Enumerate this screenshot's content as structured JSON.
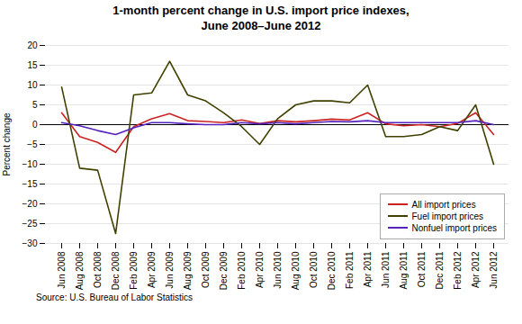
{
  "chart_data": {
    "type": "line",
    "title": "1-month percent change in U.S. import price indexes,\nJune 2008–June 2012",
    "y_label": "Percent change",
    "annotation": "Source: U.S. Bureau of Labor Statistics",
    "categories": [
      "Jun 2008",
      "Aug 2008",
      "Oct 2008",
      "Dec 2008",
      "Feb 2009",
      "Apr 2009",
      "Jun 2009",
      "Aug 2009",
      "Oct 2009",
      "Dec 2009",
      "Feb 2010",
      "Apr 2010",
      "Jun 2010",
      "Aug 2010",
      "Oct 2010",
      "Dec 2010",
      "Feb 2011",
      "Apr 2011",
      "Jun 2011",
      "Aug 2011",
      "Oct 2011",
      "Dec 2011",
      "Feb 2012",
      "Apr 2012",
      "Jun 2012"
    ],
    "series": [
      {
        "name": "All import prices",
        "color": "#cc2222",
        "values": [
          3.0,
          -3.0,
          -4.5,
          -7.0,
          -0.5,
          1.5,
          2.8,
          1.0,
          0.8,
          0.5,
          1.2,
          0.3,
          1.0,
          0.7,
          1.0,
          1.4,
          1.2,
          3.0,
          0.2,
          -0.3,
          0.0,
          -0.5,
          0.3,
          3.0,
          -2.5
        ]
      },
      {
        "name": "Fuel import prices",
        "color": "#404000",
        "values": [
          9.5,
          -11.0,
          -11.5,
          -27.5,
          7.5,
          8.0,
          16.0,
          7.5,
          6.0,
          3.0,
          -0.5,
          -5.0,
          1.5,
          5.0,
          6.0,
          6.0,
          5.5,
          10.0,
          -3.0,
          -3.0,
          -2.5,
          -0.5,
          -1.5,
          5.0,
          -10.0
        ]
      },
      {
        "name": "Nonfuel import prices",
        "color": "#5522bb",
        "values": [
          0.5,
          -0.3,
          -1.5,
          -2.5,
          -0.8,
          0.5,
          0.5,
          0.2,
          0.0,
          0.0,
          0.5,
          0.2,
          0.5,
          0.2,
          0.5,
          0.8,
          0.7,
          1.0,
          0.5,
          0.5,
          0.5,
          0.5,
          0.5,
          1.0,
          0.0
        ]
      }
    ],
    "ylim": [
      -30,
      20
    ],
    "yticks": [
      -30,
      -25,
      -20,
      -15,
      -10,
      -5,
      0,
      5,
      10,
      15,
      20
    ],
    "grid": true,
    "legend": "lower right"
  }
}
